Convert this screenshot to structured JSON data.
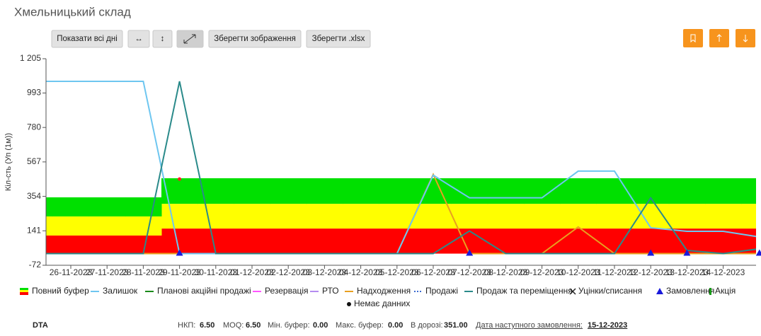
{
  "header": {
    "title": "Хмельницький склад"
  },
  "toolbar": {
    "buttons": [
      "Показати всі дні",
      "↔",
      "↕",
      "Зберегти зображення",
      "Зберегти .xlsx"
    ]
  },
  "chart_data": {
    "type": "line",
    "y_label": "Кіл-сть (Уп (1м))",
    "categories": [
      null,
      "26-11-2023",
      "27-11-2023",
      "28-11-2023",
      "29-11-2023",
      "30-11-2023",
      "01-12-2023",
      "02-12-2023",
      "03-12-2023",
      "04-12-2023",
      "05-12-2023",
      "06-12-2023",
      "07-12-2023",
      "08-12-2023",
      "09-12-2023",
      "10-12-2023",
      "11-12-2023",
      "12-12-2023",
      "13-12-2023",
      "14-12-2023",
      null
    ],
    "ylim": [
      -72,
      1205
    ],
    "yticks": [
      -72,
      141,
      354,
      567,
      780,
      993,
      {
        "value": 1205,
        "label": "1 205"
      }
    ],
    "buffer": [
      {
        "color": "#ff0000",
        "values": [
          112,
          112,
          112,
          112,
          155,
          155,
          155,
          155,
          155,
          155,
          155,
          155,
          155,
          155,
          155,
          155,
          155,
          155,
          155,
          155,
          155
        ]
      },
      {
        "color": "#ffff00",
        "values": [
          118,
          118,
          118,
          118,
          153,
          153,
          153,
          153,
          153,
          153,
          153,
          153,
          153,
          153,
          153,
          153,
          153,
          153,
          153,
          153,
          153
        ]
      },
      {
        "color": "#00e000",
        "values": [
          118,
          118,
          118,
          118,
          158,
          158,
          158,
          158,
          158,
          158,
          158,
          158,
          158,
          158,
          158,
          158,
          158,
          158,
          158,
          158,
          158
        ]
      }
    ],
    "series": [
      {
        "name": "Надходження",
        "color": "#e8a020",
        "marker": "line",
        "values": [
          0,
          0,
          0,
          0,
          0,
          0,
          0,
          0,
          0,
          0,
          0,
          490,
          0,
          0,
          0,
          165,
          0,
          0,
          0,
          0,
          0
        ]
      },
      {
        "name": "Залишок",
        "color": "#6ec6f0",
        "marker": "line",
        "values": [
          1065,
          1065,
          1065,
          1065,
          0,
          0,
          0,
          0,
          0,
          0,
          0,
          485,
          345,
          345,
          345,
          510,
          510,
          160,
          138,
          138,
          103
        ]
      },
      {
        "name": "Продаж та переміщення",
        "color": "#2a8a8a",
        "marker": "line",
        "values": [
          0,
          0,
          0,
          0,
          1065,
          0,
          0,
          0,
          0,
          0,
          0,
          0,
          140,
          0,
          0,
          0,
          0,
          345,
          20,
          0,
          30
        ]
      },
      {
        "name": "Замовлення",
        "color": "#1a1adb",
        "marker": "triangle",
        "values": [
          null,
          null,
          null,
          null,
          0,
          null,
          null,
          null,
          null,
          null,
          null,
          null,
          0,
          null,
          null,
          null,
          null,
          0,
          0,
          null,
          0
        ]
      },
      {
        "color": "#ff2020",
        "marker": "dot",
        "values": [
          null,
          null,
          null,
          null,
          461,
          null,
          null,
          null,
          null,
          null,
          null,
          null,
          null,
          null,
          null,
          null,
          null,
          null,
          null,
          null,
          null
        ]
      }
    ],
    "legend": [
      {
        "name": "Повний буфер",
        "marker": "buffer"
      },
      {
        "name": "Залишок",
        "color": "#6ec6f0",
        "marker": "line"
      },
      {
        "name": "Планові акційні продажі",
        "color": "#1a8a1a",
        "marker": "line"
      },
      {
        "name": "Резервація",
        "color": "#ff55ff",
        "marker": "line"
      },
      {
        "name": "РТО",
        "color": "#b58cf0",
        "marker": "line"
      },
      {
        "name": "Надходження",
        "color": "#e8a020",
        "marker": "line"
      },
      {
        "name": "Продажі",
        "color": "#3a6ad0",
        "marker": "dash"
      },
      {
        "name": "Продаж та переміщення",
        "color": "#2a8a8a",
        "marker": "line"
      },
      {
        "name": "Уцінки/списання",
        "color": "#222222",
        "marker": "x"
      },
      {
        "name": "Замовлення",
        "color": "#1a1adb",
        "marker": "triangle"
      },
      {
        "name": "Акція",
        "color": "#1a9a1a",
        "marker": "bar"
      },
      {
        "name": "Немає данних",
        "color": "#111111",
        "marker": "dot"
      }
    ]
  },
  "footer": {
    "code": "DTA",
    "stats": [
      {
        "label": "НКП:",
        "value": "6.50"
      },
      {
        "label": "MOQ:",
        "value": "6.50"
      },
      {
        "label": "Мін. буфер:",
        "value": "0.00"
      },
      {
        "label": "Макс. буфер:",
        "value": "0.00"
      },
      {
        "label": "В дорозі:",
        "value": "351.00"
      }
    ],
    "next_order_label": "Дата наступного замовлення:",
    "next_order_date": "15-12-2023"
  }
}
